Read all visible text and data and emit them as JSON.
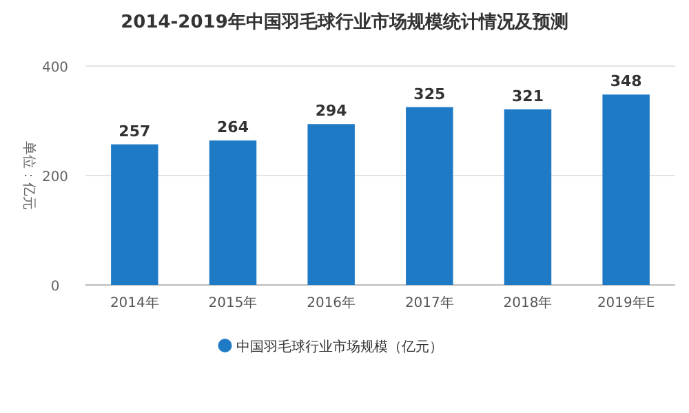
{
  "chart_data": {
    "type": "bar",
    "title": "2014-2019年中国羽毛球行业市场规模统计情况及预测",
    "ylabel": "单位：亿元",
    "categories": [
      "2014年",
      "2015年",
      "2016年",
      "2017年",
      "2018年",
      "2019年E"
    ],
    "series": [
      {
        "name": "中国羽毛球行业市场规模（亿元）",
        "color": "#1f7ac6",
        "values": [
          257,
          264,
          294,
          325,
          321,
          348
        ]
      }
    ],
    "ylim": [
      0,
      400
    ],
    "yticks": [
      0,
      200,
      400
    ],
    "grid": "y",
    "legend": "bottom",
    "data_labels": true
  }
}
